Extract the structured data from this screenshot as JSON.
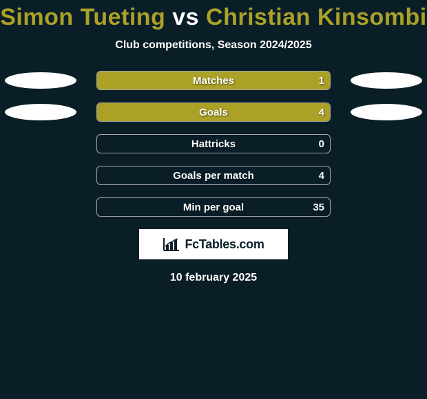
{
  "background_color": "#0a1e28",
  "title": {
    "player1": "Simon Tueting",
    "vs": "vs",
    "player2": "Christian Kinsombi",
    "color_p1": "#aba127",
    "color_vs": "#ffffff",
    "color_p2": "#aba127",
    "fontsize": 34
  },
  "subtitle": {
    "text": "Club competitions, Season 2024/2025",
    "color": "#ffffff",
    "fontsize": 16
  },
  "bar_style": {
    "wrap_width": 340,
    "wrap_height": 28,
    "border_color": "#a8a8a8",
    "border_radius": 6,
    "left_fill_color": "#aba127",
    "right_fill_color": "#aba127",
    "label_color": "#ffffff",
    "label_fontsize": 15,
    "ellipse_color": "#ffffff",
    "ellipse_width": 104,
    "ellipse_height": 24
  },
  "rows": [
    {
      "label": "Matches",
      "left_value": "",
      "right_value": "1",
      "left_fill_percent": 100,
      "right_fill_percent": 0,
      "show_left_ellipse": true,
      "show_right_ellipse": true
    },
    {
      "label": "Goals",
      "left_value": "",
      "right_value": "4",
      "left_fill_percent": 100,
      "right_fill_percent": 0,
      "show_left_ellipse": true,
      "show_right_ellipse": true
    },
    {
      "label": "Hattricks",
      "left_value": "",
      "right_value": "0",
      "left_fill_percent": 0,
      "right_fill_percent": 0,
      "show_left_ellipse": false,
      "show_right_ellipse": false
    },
    {
      "label": "Goals per match",
      "left_value": "",
      "right_value": "4",
      "left_fill_percent": 0,
      "right_fill_percent": 0,
      "show_left_ellipse": false,
      "show_right_ellipse": false
    },
    {
      "label": "Min per goal",
      "left_value": "",
      "right_value": "35",
      "left_fill_percent": 0,
      "right_fill_percent": 0,
      "show_left_ellipse": false,
      "show_right_ellipse": false
    }
  ],
  "logo": {
    "text": "FcTables.com",
    "box_bg": "#ffffff",
    "text_color": "#0a1e28",
    "fontsize": 18
  },
  "date": {
    "text": "10 february 2025",
    "color": "#ffffff",
    "fontsize": 16
  }
}
